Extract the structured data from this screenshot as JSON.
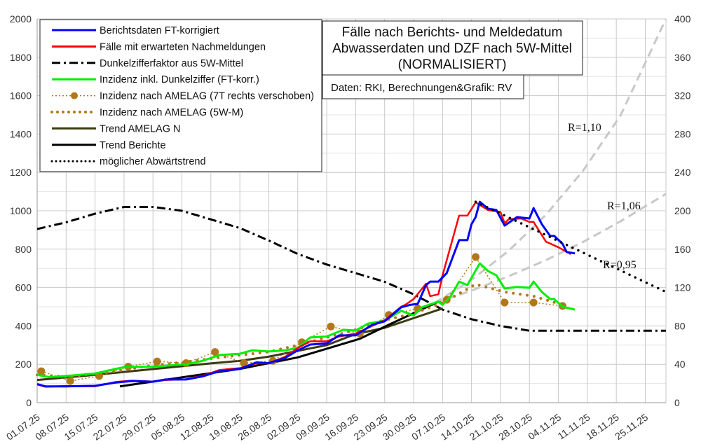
{
  "chart_data": {
    "type": "line",
    "title_lines": [
      "Fälle nach Berichts- und Meldedatum",
      "Abwasserdaten und DZF nach 5W-Mittel",
      "(NORMALISIERT)"
    ],
    "source": "Daten: RKI, Berechnungen&Grafik: RV",
    "x_range": [
      "01.07.25",
      "30.11.25"
    ],
    "x_ticks": [
      "01.07.25",
      "08.07.25",
      "15.07.25",
      "22.07.25",
      "29.07.25",
      "05.08.25",
      "12.08.25",
      "19.08.25",
      "26.08.25",
      "02.09.25",
      "09.09.25",
      "16.09.25",
      "23.09.25",
      "30.09.25",
      "07.10.25",
      "14.10.25",
      "21.10.25",
      "28.10.25",
      "04.11.25",
      "11.11.25",
      "18.11.25",
      "25.11.25"
    ],
    "y_left": {
      "range": [
        0,
        2000
      ],
      "ticks": [
        0,
        200,
        400,
        600,
        800,
        1000,
        1200,
        1400,
        1600,
        1800,
        2000
      ]
    },
    "y_right": {
      "range": [
        0,
        400
      ],
      "ticks": [
        0,
        40,
        80,
        120,
        160,
        200,
        240,
        280,
        320,
        360,
        400
      ]
    },
    "grid": true,
    "legend_placement": "top-left",
    "series": [
      {
        "name": "Berichtsdaten FT-korrigiert",
        "color": "#0000ff",
        "style": "solid",
        "axis": "left",
        "points": [
          [
            "01.07.25",
            97
          ],
          [
            "03.07.25",
            85
          ],
          [
            "08.07.25",
            85
          ],
          [
            "15.07.25",
            88
          ],
          [
            "20.07.25",
            105
          ],
          [
            "24.07.25",
            113
          ],
          [
            "29.07.25",
            109
          ],
          [
            "01.08.25",
            121
          ],
          [
            "06.08.25",
            121
          ],
          [
            "10.08.25",
            137
          ],
          [
            "14.08.25",
            164
          ],
          [
            "19.08.25",
            176
          ],
          [
            "23.08.25",
            210
          ],
          [
            "26.08.25",
            206
          ],
          [
            "30.08.25",
            234
          ],
          [
            "02.09.25",
            273
          ],
          [
            "05.09.25",
            303
          ],
          [
            "09.09.25",
            309
          ],
          [
            "12.09.25",
            351
          ],
          [
            "16.09.25",
            351
          ],
          [
            "20.09.25",
            406
          ],
          [
            "23.09.25",
            424
          ],
          [
            "27.09.25",
            497
          ],
          [
            "29.09.25",
            509
          ],
          [
            "01.10.25",
            515
          ],
          [
            "03.10.25",
            613
          ],
          [
            "04.10.25",
            631
          ],
          [
            "06.10.25",
            631
          ],
          [
            "08.10.25",
            675
          ],
          [
            "11.10.25",
            847
          ],
          [
            "13.10.25",
            847
          ],
          [
            "14.10.25",
            930
          ],
          [
            "15.10.25",
            967
          ],
          [
            "16.10.25",
            1047
          ],
          [
            "18.10.25",
            1011
          ],
          [
            "20.10.25",
            1004
          ],
          [
            "22.10.25",
            923
          ],
          [
            "25.10.25",
            967
          ],
          [
            "28.10.25",
            960
          ],
          [
            "29.10.25",
            1014
          ],
          [
            "31.10.25",
            930
          ],
          [
            "02.11.25",
            869
          ],
          [
            "03.11.25",
            869
          ],
          [
            "05.11.25",
            828
          ],
          [
            "06.11.25",
            785
          ],
          [
            "08.11.25",
            778
          ]
        ]
      },
      {
        "name": "Fälle mit erwarteten Nachmeldungen",
        "color": "#ff0000",
        "style": "solid",
        "axis": "left",
        "points": [
          [
            "01.07.25",
            95
          ],
          [
            "03.07.25",
            83
          ],
          [
            "08.07.25",
            87
          ],
          [
            "15.07.25",
            85
          ],
          [
            "20.07.25",
            108
          ],
          [
            "24.07.25",
            115
          ],
          [
            "29.07.25",
            110
          ],
          [
            "01.08.25",
            118
          ],
          [
            "06.08.25",
            122
          ],
          [
            "10.08.25",
            140
          ],
          [
            "14.08.25",
            170
          ],
          [
            "19.08.25",
            180
          ],
          [
            "23.08.25",
            205
          ],
          [
            "26.08.25",
            205
          ],
          [
            "30.08.25",
            240
          ],
          [
            "02.09.25",
            285
          ],
          [
            "05.09.25",
            320
          ],
          [
            "09.09.25",
            320
          ],
          [
            "12.09.25",
            345
          ],
          [
            "16.09.25",
            360
          ],
          [
            "20.09.25",
            400
          ],
          [
            "23.09.25",
            430
          ],
          [
            "27.09.25",
            500
          ],
          [
            "28.09.25",
            510
          ],
          [
            "30.09.25",
            540
          ],
          [
            "03.10.25",
            620
          ],
          [
            "04.10.25",
            555
          ],
          [
            "06.10.25",
            565
          ],
          [
            "07.10.25",
            664
          ],
          [
            "11.10.25",
            975
          ],
          [
            "13.10.25",
            975
          ],
          [
            "15.10.25",
            1044
          ],
          [
            "18.10.25",
            1004
          ],
          [
            "21.10.25",
            993
          ],
          [
            "22.10.25",
            935
          ],
          [
            "23.10.25",
            956
          ],
          [
            "26.10.25",
            960
          ],
          [
            "28.10.25",
            942
          ],
          [
            "29.10.25",
            942
          ],
          [
            "01.11.25",
            839
          ],
          [
            "04.11.25",
            810
          ],
          [
            "07.11.25",
            774
          ]
        ]
      },
      {
        "name": "Dunkelzifferfaktor aus 5W-Mittel",
        "color": "#000000",
        "style": "dashdot",
        "axis": "right",
        "points": [
          [
            "01.07.25",
            181
          ],
          [
            "08.07.25",
            188
          ],
          [
            "15.07.25",
            197
          ],
          [
            "22.07.25",
            204
          ],
          [
            "29.07.25",
            204
          ],
          [
            "05.08.25",
            200
          ],
          [
            "12.08.25",
            191
          ],
          [
            "19.08.25",
            182
          ],
          [
            "26.08.25",
            169
          ],
          [
            "02.09.25",
            155
          ],
          [
            "09.09.25",
            144
          ],
          [
            "16.09.25",
            135
          ],
          [
            "23.09.25",
            126
          ],
          [
            "30.09.25",
            113
          ],
          [
            "07.10.25",
            97
          ],
          [
            "14.10.25",
            87
          ],
          [
            "21.10.25",
            80
          ],
          [
            "28.10.25",
            75
          ],
          [
            "04.11.25",
            75
          ],
          [
            "30.11.25",
            75
          ]
        ]
      },
      {
        "name": "Inzidenz inkl. Dunkelziffer (FT-korr.)",
        "color": "#00ee00",
        "style": "solid",
        "axis": "left",
        "points": [
          [
            "01.07.25",
            145
          ],
          [
            "04.07.25",
            133
          ],
          [
            "08.07.25",
            139
          ],
          [
            "15.07.25",
            152
          ],
          [
            "20.07.25",
            176
          ],
          [
            "22.07.25",
            185
          ],
          [
            "29.07.25",
            188
          ],
          [
            "06.08.25",
            200
          ],
          [
            "10.08.25",
            218
          ],
          [
            "14.08.25",
            248
          ],
          [
            "19.08.25",
            255
          ],
          [
            "22.08.25",
            273
          ],
          [
            "26.08.25",
            267
          ],
          [
            "30.08.25",
            273
          ],
          [
            "02.09.25",
            285
          ],
          [
            "05.09.25",
            340
          ],
          [
            "09.09.25",
            345
          ],
          [
            "13.09.25",
            380
          ],
          [
            "16.09.25",
            376
          ],
          [
            "19.09.25",
            412
          ],
          [
            "23.09.25",
            428
          ],
          [
            "27.09.25",
            479
          ],
          [
            "30.09.25",
            455
          ],
          [
            "02.10.25",
            497
          ],
          [
            "06.10.25",
            527
          ],
          [
            "07.10.25",
            510
          ],
          [
            "09.10.25",
            555
          ],
          [
            "11.10.25",
            631
          ],
          [
            "13.10.25",
            613
          ],
          [
            "16.10.25",
            726
          ],
          [
            "18.10.25",
            686
          ],
          [
            "20.10.25",
            664
          ],
          [
            "22.10.25",
            595
          ],
          [
            "25.10.25",
            603
          ],
          [
            "28.10.25",
            599
          ],
          [
            "29.10.25",
            631
          ],
          [
            "31.10.25",
            577
          ],
          [
            "02.11.25",
            540
          ],
          [
            "03.11.25",
            540
          ],
          [
            "05.11.25",
            500
          ],
          [
            "08.11.25",
            485
          ]
        ]
      },
      {
        "name": "Inzidenz nach AMELAG (7T rechts verschoben)",
        "color": "#b07818",
        "style": "dotted-marker",
        "axis": "left",
        "points": [
          [
            "02.07.25",
            164
          ],
          [
            "09.07.25",
            113
          ],
          [
            "16.07.25",
            139
          ],
          [
            "23.07.25",
            188
          ],
          [
            "30.07.25",
            215
          ],
          [
            "06.08.25",
            206
          ],
          [
            "13.08.25",
            264
          ],
          [
            "20.08.25",
            206
          ],
          [
            "27.08.25",
            218
          ],
          [
            "03.09.25",
            315
          ],
          [
            "10.09.25",
            397
          ],
          [
            "17.09.25",
            360
          ],
          [
            "24.09.25",
            457
          ],
          [
            "01.10.25",
            491
          ],
          [
            "08.10.25",
            536
          ],
          [
            "15.10.25",
            759
          ],
          [
            "22.10.25",
            522
          ],
          [
            "29.10.25",
            522
          ],
          [
            "05.11.25",
            504
          ]
        ]
      },
      {
        "name": "Inzidenz nach AMELAG (5W-M)",
        "color": "#b07818",
        "style": "dotted-thick",
        "axis": "left",
        "points": [
          [
            "01.07.25",
            145
          ],
          [
            "08.07.25",
            135
          ],
          [
            "15.07.25",
            150
          ],
          [
            "22.07.25",
            170
          ],
          [
            "29.07.25",
            195
          ],
          [
            "05.08.25",
            210
          ],
          [
            "12.08.25",
            230
          ],
          [
            "19.08.25",
            248
          ],
          [
            "26.08.25",
            265
          ],
          [
            "02.09.25",
            300
          ],
          [
            "09.09.25",
            340
          ],
          [
            "16.09.25",
            380
          ],
          [
            "23.09.25",
            430
          ],
          [
            "30.09.25",
            465
          ],
          [
            "07.10.25",
            520
          ],
          [
            "15.10.25",
            617
          ],
          [
            "22.10.25",
            577
          ],
          [
            "29.10.25",
            555
          ],
          [
            "05.11.25",
            510
          ]
        ]
      },
      {
        "name": "Trend AMELAG N",
        "color": "#3b3b12",
        "style": "solid",
        "axis": "left",
        "points": [
          [
            "01.07.25",
            118
          ],
          [
            "15.07.25",
            145
          ],
          [
            "29.07.25",
            175
          ],
          [
            "12.08.25",
            205
          ],
          [
            "19.08.25",
            218
          ],
          [
            "26.08.25",
            240
          ],
          [
            "09.09.25",
            300
          ],
          [
            "16.09.25",
            358
          ],
          [
            "23.09.25",
            390
          ],
          [
            "07.10.25",
            491
          ]
        ]
      },
      {
        "name": "Trend Berichte",
        "color": "#000000",
        "style": "solid",
        "axis": "left",
        "points": [
          [
            "21.07.25",
            85
          ],
          [
            "19.08.25",
            176
          ],
          [
            "02.09.25",
            236
          ],
          [
            "17.09.25",
            333
          ],
          [
            "24.09.25",
            406
          ],
          [
            "06.10.25",
            527
          ]
        ]
      },
      {
        "name": "möglicher Abwärtstrend",
        "color": "#000000",
        "style": "dotted",
        "axis": "left",
        "points": [
          [
            "15.10.25",
            1047
          ],
          [
            "30.11.25",
            577
          ]
        ]
      }
    ],
    "scenario_lines": [
      {
        "label": "R=1,10",
        "color": "#c8c8c8",
        "style": "dashed",
        "points": [
          [
            "05.10.25",
            518
          ],
          [
            "14.10.25",
            640
          ],
          [
            "23.10.25",
            792
          ],
          [
            "01.11.25",
            979
          ],
          [
            "10.11.25",
            1210
          ],
          [
            "19.11.25",
            1496
          ],
          [
            "30.11.25",
            2000
          ]
        ]
      },
      {
        "label": "R=1,06",
        "color": "#c8c8c8",
        "style": "dashed",
        "points": [
          [
            "05.10.25",
            518
          ],
          [
            "14.10.25",
            584
          ],
          [
            "23.10.25",
            659
          ],
          [
            "01.11.25",
            743
          ],
          [
            "10.11.25",
            838
          ],
          [
            "19.11.25",
            945
          ],
          [
            "30.11.25",
            1088
          ]
        ]
      },
      {
        "label": "R=0,95",
        "attached_to": "möglicher Abwärtstrend"
      }
    ]
  }
}
